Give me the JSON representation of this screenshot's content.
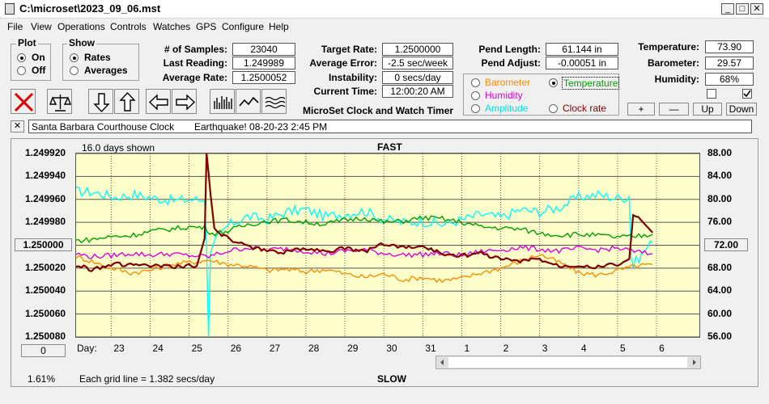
{
  "window": {
    "title": "C:\\microset\\2023_09_06.mst"
  },
  "menu": [
    "File",
    "View",
    "Operations",
    "Controls",
    "Watches",
    "GPS",
    "Configure",
    "Help"
  ],
  "plot_group": {
    "title": "Plot",
    "on": "On",
    "off": "Off"
  },
  "show_group": {
    "title": "Show",
    "rates": "Rates",
    "averages": "Averages"
  },
  "stats": {
    "samples_label": "# of Samples:",
    "samples": "23040",
    "last_label": "Last Reading:",
    "last": "1.249989",
    "avg_label": "Average Rate:",
    "avg": "1.2500052"
  },
  "rates": {
    "target_label": "Target Rate:",
    "target": "1.2500000",
    "error_label": "Average Error:",
    "error": "-2.5 sec/week",
    "instab_label": "Instability:",
    "instab": "0 secs/day",
    "time_label": "Current Time:",
    "time": "12:00:20 AM"
  },
  "app_name": "MicroSet Clock and Watch Timer",
  "pend": {
    "length_label": "Pend Length:",
    "length": "61.144 in",
    "adjust_label": "Pend Adjust:",
    "adjust": "-0.00051 in"
  },
  "sensor_options": {
    "barometer": "Barometer",
    "temperature": "Temperature",
    "humidity": "Humidity",
    "amplitude": "Amplitude",
    "clock_rate": "Clock rate"
  },
  "env": {
    "temp_label": "Temperature:",
    "temp": "73.90",
    "baro_label": "Barometer:",
    "baro": "29.57",
    "hum_label": "Humidity:",
    "hum": "68%"
  },
  "buttons": {
    "plus": "+",
    "minus": "—",
    "up": "Up",
    "down": "Down",
    "close_x": "✕",
    "left_value": "0"
  },
  "notes": {
    "clock": "Santa Barbara Courthouse Clock",
    "event": "Earthquake! 08-20-23  2:45 PM"
  },
  "footer": {
    "percent": "1.61%",
    "grid": "Each grid line = 1.382 secs/day",
    "slow": "SLOW"
  },
  "colors": {
    "barometer": "#ff8c00",
    "temperature": "#00a000",
    "humidity": "#e000e0",
    "amplitude": "#00ffff",
    "clock_rate": "#800000",
    "plot_bg": "#ffffcc"
  },
  "chart_data": {
    "type": "line",
    "title": "FAST",
    "subtitle": "16.0 days shown",
    "xlabel": "Day:",
    "x_ticks": [
      "23",
      "24",
      "25",
      "26",
      "27",
      "28",
      "29",
      "30",
      "31",
      "1",
      "2",
      "3",
      "4",
      "5",
      "6"
    ],
    "y_left_ticks": [
      "1.249920",
      "1.249940",
      "1.249960",
      "1.249980",
      "1.250000",
      "1.250020",
      "1.250040",
      "1.250060",
      "1.250080"
    ],
    "y_left_highlight": "1.250000",
    "y_right_ticks": [
      "88.00",
      "84.00",
      "80.00",
      "76.00",
      "72.00",
      "68.00",
      "64.00",
      "60.00",
      "56.00"
    ],
    "y_right_highlight": "72.00",
    "ylim_left": [
      1.25008,
      1.24992
    ],
    "ylim_right": [
      56,
      88
    ],
    "x_range": [
      22.1,
      38.1
    ],
    "grid": true,
    "series": [
      {
        "key": "amplitude",
        "values": [
          [
            22.1,
            81.4
          ],
          [
            22.6,
            81.2
          ],
          [
            23.1,
            80.4
          ],
          [
            23.6,
            80.8
          ],
          [
            24.1,
            80.2
          ],
          [
            24.6,
            79.8
          ],
          [
            25.1,
            80.0
          ],
          [
            25.4,
            79.8
          ],
          [
            25.45,
            72
          ],
          [
            25.5,
            55.5
          ],
          [
            25.55,
            70
          ],
          [
            25.7,
            73
          ],
          [
            26.0,
            75.5
          ],
          [
            26.5,
            77
          ],
          [
            27.0,
            76.5
          ],
          [
            27.5,
            77.8
          ],
          [
            28.0,
            78.2
          ],
          [
            28.5,
            77
          ],
          [
            29.0,
            77.5
          ],
          [
            29.5,
            78
          ],
          [
            30.0,
            76.5
          ],
          [
            30.5,
            76
          ],
          [
            31.0,
            76.2
          ],
          [
            31.5,
            75.6
          ],
          [
            32.0,
            76.4
          ],
          [
            32.5,
            77.4
          ],
          [
            33.0,
            76.8
          ],
          [
            33.5,
            78.2
          ],
          [
            34.0,
            77.8
          ],
          [
            34.5,
            78.6
          ],
          [
            35.0,
            80.4
          ],
          [
            35.5,
            80.8
          ],
          [
            36.0,
            80.2
          ],
          [
            36.3,
            80.5
          ],
          [
            36.35,
            70
          ],
          [
            36.4,
            68.5
          ],
          [
            36.7,
            71.2
          ],
          [
            36.9,
            72.5
          ]
        ]
      },
      {
        "key": "temperature",
        "values": [
          [
            22.1,
            72.8
          ],
          [
            22.5,
            73.0
          ],
          [
            23.0,
            73.5
          ],
          [
            23.5,
            73.7
          ],
          [
            24.0,
            74.4
          ],
          [
            24.5,
            74.8
          ],
          [
            25.0,
            75.2
          ],
          [
            25.4,
            75.1
          ],
          [
            25.6,
            74.0
          ],
          [
            26.0,
            74.5
          ],
          [
            26.5,
            75.6
          ],
          [
            27.0,
            76.2
          ],
          [
            27.5,
            76.4
          ],
          [
            28.0,
            76.0
          ],
          [
            28.5,
            75.7
          ],
          [
            29.0,
            76.4
          ],
          [
            29.5,
            76.8
          ],
          [
            30.0,
            76.0
          ],
          [
            30.5,
            76.2
          ],
          [
            31.0,
            76.8
          ],
          [
            31.5,
            76.6
          ],
          [
            32.0,
            76.0
          ],
          [
            32.5,
            75.2
          ],
          [
            33.0,
            75.0
          ],
          [
            33.5,
            74.8
          ],
          [
            34.0,
            74.1
          ],
          [
            34.5,
            73.8
          ],
          [
            35.0,
            73.9
          ],
          [
            35.5,
            73.7
          ],
          [
            36.0,
            73.4
          ],
          [
            36.4,
            73.5
          ],
          [
            36.9,
            73.9
          ]
        ]
      },
      {
        "key": "humidity",
        "values": [
          [
            22.1,
            70.5
          ],
          [
            22.5,
            70.0
          ],
          [
            23.0,
            70.2
          ],
          [
            23.5,
            70.6
          ],
          [
            24.0,
            70.3
          ],
          [
            24.5,
            70.5
          ],
          [
            25.0,
            70.2
          ],
          [
            25.5,
            70.0
          ],
          [
            26.0,
            71.0
          ],
          [
            26.5,
            71.6
          ],
          [
            27.0,
            71.2
          ],
          [
            27.5,
            71.4
          ],
          [
            28.0,
            71.0
          ],
          [
            28.5,
            70.5
          ],
          [
            29.0,
            71.0
          ],
          [
            29.5,
            71.2
          ],
          [
            30.0,
            70.6
          ],
          [
            30.5,
            70.3
          ],
          [
            31.0,
            70.4
          ],
          [
            31.5,
            70.6
          ],
          [
            32.0,
            70.2
          ],
          [
            32.5,
            70.9
          ],
          [
            33.0,
            71.2
          ],
          [
            33.5,
            71.6
          ],
          [
            34.0,
            71.3
          ],
          [
            34.5,
            71.0
          ],
          [
            35.0,
            71.4
          ],
          [
            35.5,
            71.2
          ],
          [
            36.0,
            71.5
          ],
          [
            36.5,
            70.8
          ],
          [
            36.9,
            70.5
          ]
        ]
      },
      {
        "key": "barometer",
        "values": [
          [
            22.1,
            70.0
          ],
          [
            22.5,
            69.2
          ],
          [
            23.0,
            68.0
          ],
          [
            23.5,
            67.2
          ],
          [
            24.0,
            67.6
          ],
          [
            24.5,
            68.6
          ],
          [
            25.0,
            69.0
          ],
          [
            25.5,
            69.4
          ],
          [
            26.0,
            68.7
          ],
          [
            26.5,
            68.4
          ],
          [
            27.0,
            67.6
          ],
          [
            27.5,
            67.8
          ],
          [
            28.0,
            67.4
          ],
          [
            28.5,
            67.8
          ],
          [
            29.0,
            67.0
          ],
          [
            29.5,
            66.4
          ],
          [
            30.0,
            67.0
          ],
          [
            30.5,
            66.0
          ],
          [
            31.0,
            66.4
          ],
          [
            31.5,
            65.8
          ],
          [
            32.0,
            66.2
          ],
          [
            32.5,
            67.2
          ],
          [
            33.0,
            68.0
          ],
          [
            33.5,
            69.2
          ],
          [
            34.0,
            70.4
          ],
          [
            34.5,
            69.0
          ],
          [
            35.0,
            67.2
          ],
          [
            35.5,
            66.8
          ],
          [
            36.0,
            67.6
          ],
          [
            36.5,
            68.4
          ],
          [
            36.9,
            68.6
          ]
        ]
      },
      {
        "key": "clock_rate",
        "values": [
          [
            22.1,
            1.2500175
          ],
          [
            22.5,
            1.250021
          ],
          [
            23.0,
            1.2500165
          ],
          [
            23.5,
            1.250017
          ],
          [
            24.0,
            1.250018
          ],
          [
            24.5,
            1.250019
          ],
          [
            25.0,
            1.250018
          ],
          [
            25.2,
            1.250018
          ],
          [
            25.4,
            1.249994
          ],
          [
            25.45,
            1.249918
          ],
          [
            25.55,
            1.249955
          ],
          [
            25.65,
            1.249985
          ],
          [
            25.9,
            1.249992
          ],
          [
            26.2,
            1.2499975
          ],
          [
            26.5,
            1.250001
          ],
          [
            27.0,
            1.250005
          ],
          [
            27.5,
            1.250006
          ],
          [
            28.0,
            1.2500025
          ],
          [
            28.5,
            1.250005
          ],
          [
            29.0,
            1.250003
          ],
          [
            29.5,
            1.2500055
          ],
          [
            30.0,
            1.2499985
          ],
          [
            30.5,
            1.250002
          ],
          [
            31.0,
            1.250001
          ],
          [
            31.5,
            1.2500075
          ],
          [
            32.0,
            1.250009
          ],
          [
            32.5,
            1.250007
          ],
          [
            33.0,
            1.250012
          ],
          [
            33.5,
            1.250014
          ],
          [
            34.0,
            1.250012
          ],
          [
            34.5,
            1.250018
          ],
          [
            35.0,
            1.250017
          ],
          [
            35.5,
            1.250019
          ],
          [
            36.0,
            1.2500165
          ],
          [
            36.3,
            1.250012
          ],
          [
            36.4,
            1.249974
          ],
          [
            36.6,
            1.249978
          ],
          [
            36.9,
            1.249989
          ]
        ]
      }
    ]
  }
}
